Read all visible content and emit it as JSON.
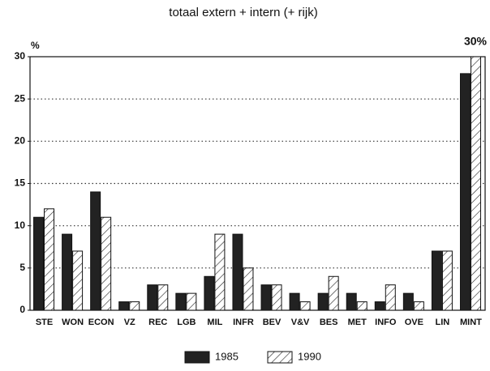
{
  "chart_data": {
    "type": "bar",
    "title": "totaal extern + intern (+ rijk)",
    "y_label": "%",
    "annotation": "30%",
    "categories": [
      "STE",
      "WON",
      "ECON",
      "VZ",
      "REC",
      "LGB",
      "MIL",
      "INFR",
      "BEV",
      "V&V",
      "BES",
      "MET",
      "INFO",
      "OVE",
      "LIN",
      "MINT"
    ],
    "series": [
      {
        "name": "1985",
        "color": "#222222",
        "hatch": false,
        "values": [
          11,
          9,
          14,
          1,
          3,
          2,
          4,
          9,
          3,
          2,
          2,
          2,
          1,
          2,
          7,
          28
        ]
      },
      {
        "name": "1990",
        "color": "#ffffff",
        "hatch": true,
        "values": [
          12,
          7,
          11,
          1,
          3,
          2,
          9,
          5,
          3,
          1,
          4,
          1,
          3,
          1,
          7,
          30
        ]
      }
    ],
    "ylim": [
      0,
      30
    ],
    "yticks": [
      0,
      5,
      10,
      15,
      20,
      25,
      30
    ],
    "grid": true
  }
}
